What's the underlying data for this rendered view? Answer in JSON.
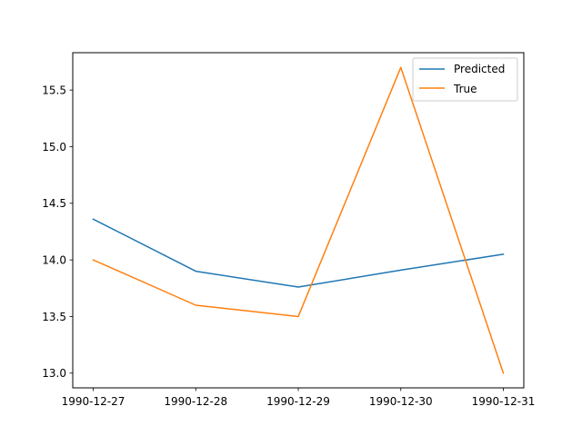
{
  "chart_data": {
    "type": "line",
    "title": "",
    "xlabel": "",
    "ylabel": "",
    "x": [
      "1990-12-27",
      "1990-12-28",
      "1990-12-29",
      "1990-12-30",
      "1990-12-31"
    ],
    "series": [
      {
        "name": "Predicted",
        "color": "#1f77b4",
        "values": [
          14.36,
          13.9,
          13.76,
          13.91,
          14.05
        ]
      },
      {
        "name": "True",
        "color": "#ff7f0e",
        "values": [
          14.0,
          13.6,
          13.5,
          15.7,
          13.0
        ]
      }
    ],
    "ylim": [
      12.87,
      15.83
    ],
    "yticks": [
      "13.0",
      "13.5",
      "14.0",
      "14.5",
      "15.0",
      "15.5"
    ],
    "grid": false,
    "legend_position": "top-right"
  }
}
